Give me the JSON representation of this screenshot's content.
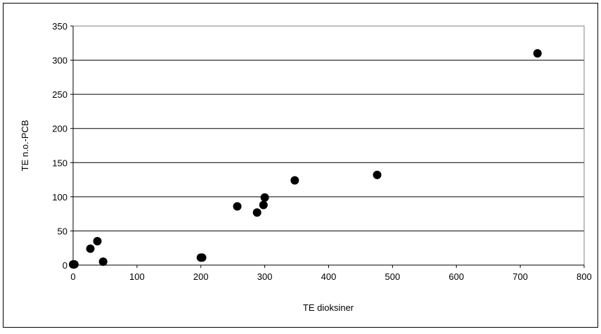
{
  "chart_data": {
    "type": "scatter",
    "x_label": "TE dioksiner",
    "y_label": "TE n.o.-PCB",
    "x": [
      0,
      2,
      27,
      38,
      47,
      200,
      202,
      257,
      288,
      298,
      300,
      347,
      476,
      727
    ],
    "series": [
      {
        "color": "#000000",
        "values": [
          1,
          1,
          24,
          35,
          5,
          11,
          11,
          86,
          77,
          88,
          99,
          124,
          132,
          310
        ]
      }
    ],
    "xlim": [
      0,
      800
    ],
    "xticks": [
      0,
      100,
      200,
      300,
      400,
      500,
      600,
      700,
      800
    ],
    "ylim": [
      0,
      350
    ],
    "yticks": [
      0,
      50,
      100,
      150,
      200,
      250,
      300,
      350
    ],
    "grid": true
  }
}
